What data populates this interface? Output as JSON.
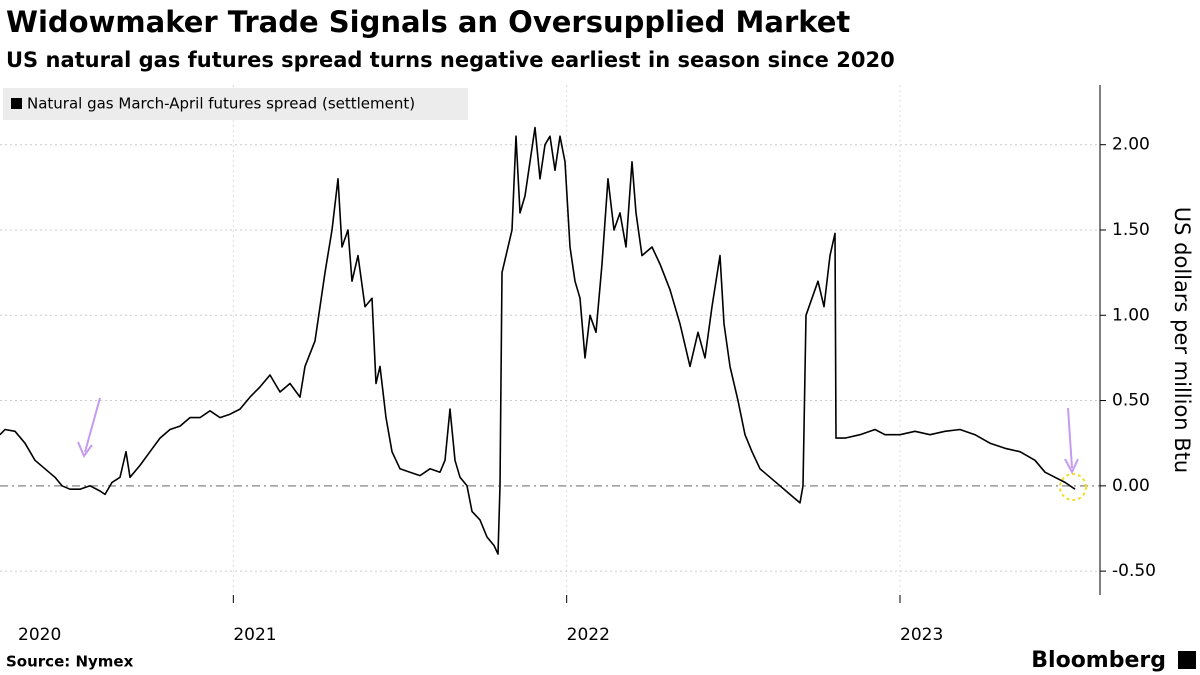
{
  "chart_data": {
    "type": "line",
    "title": "Widowmaker Trade Signals an Oversupplied Market",
    "subtitle": "US natural gas futures spread turns negative earliest in season since 2020",
    "y_label": "US dollars per million Btu",
    "source": "Source: Nymex",
    "brand": "Bloomberg",
    "x": [
      2020.3,
      2020.315,
      2020.345,
      2020.375,
      2020.405,
      2020.435,
      2020.465,
      2020.486,
      2020.51,
      2020.54,
      2020.57,
      2020.6,
      2020.615,
      2020.636,
      2020.66,
      2020.678,
      2020.69,
      2020.72,
      2020.75,
      2020.78,
      2020.81,
      2020.84,
      2020.87,
      2020.9,
      2020.93,
      2020.96,
      2020.99,
      2021.02,
      2021.05,
      2021.08,
      2021.11,
      2021.14,
      2021.17,
      2021.2,
      2021.215,
      2021.245,
      2021.26,
      2021.275,
      2021.296,
      2021.314,
      2021.326,
      2021.344,
      2021.356,
      2021.374,
      2021.395,
      2021.416,
      2021.428,
      2021.44,
      2021.458,
      2021.476,
      2021.5,
      2021.53,
      2021.56,
      2021.59,
      2021.62,
      2021.635,
      2021.65,
      2021.665,
      2021.68,
      2021.701,
      2021.716,
      2021.74,
      2021.761,
      2021.782,
      2021.794,
      2021.8,
      2021.806,
      2021.818,
      2021.836,
      2021.848,
      2021.86,
      2021.875,
      2021.89,
      2021.905,
      2021.92,
      2021.935,
      2021.95,
      2021.965,
      2021.98,
      2021.995,
      2022.01,
      2022.025,
      2022.04,
      2022.055,
      2022.07,
      2022.088,
      2022.106,
      2022.124,
      2022.142,
      2022.16,
      2022.178,
      2022.196,
      2022.208,
      2022.226,
      2022.256,
      2022.28,
      2022.31,
      2022.34,
      2022.37,
      2022.394,
      2022.415,
      2022.436,
      2022.46,
      2022.472,
      2022.49,
      2022.514,
      2022.535,
      2022.556,
      2022.58,
      2022.61,
      2022.64,
      2022.67,
      2022.7,
      2022.709,
      2022.718,
      2022.736,
      2022.754,
      2022.772,
      2022.79,
      2022.805,
      2022.808,
      2022.835,
      2022.88,
      2022.925,
      2022.955,
      2023.0,
      2023.045,
      2023.09,
      2023.135,
      2023.18,
      2023.225,
      2023.27,
      2023.315,
      2023.36,
      2023.405,
      2023.435,
      2023.465,
      2023.495,
      2023.525
    ],
    "series": [
      {
        "name": "Natural gas March-April futures spread (settlement)",
        "color": "#000000",
        "values": [
          0.3,
          0.33,
          0.32,
          0.25,
          0.15,
          0.1,
          0.05,
          0.0,
          -0.02,
          -0.02,
          0.0,
          -0.03,
          -0.05,
          0.02,
          0.05,
          0.2,
          0.05,
          0.12,
          0.2,
          0.28,
          0.33,
          0.35,
          0.4,
          0.4,
          0.44,
          0.4,
          0.42,
          0.45,
          0.52,
          0.58,
          0.65,
          0.55,
          0.6,
          0.52,
          0.7,
          0.85,
          1.05,
          1.25,
          1.5,
          1.8,
          1.4,
          1.5,
          1.2,
          1.35,
          1.05,
          1.1,
          0.6,
          0.7,
          0.4,
          0.2,
          0.1,
          0.08,
          0.06,
          0.1,
          0.08,
          0.15,
          0.45,
          0.15,
          0.05,
          0.0,
          -0.15,
          -0.2,
          -0.3,
          -0.35,
          -0.4,
          0.0,
          1.25,
          1.35,
          1.5,
          2.05,
          1.6,
          1.7,
          1.9,
          2.1,
          1.8,
          2.0,
          2.05,
          1.85,
          2.05,
          1.9,
          1.4,
          1.2,
          1.1,
          0.75,
          1.0,
          0.9,
          1.3,
          1.8,
          1.5,
          1.6,
          1.4,
          1.9,
          1.6,
          1.35,
          1.4,
          1.3,
          1.15,
          0.95,
          0.7,
          0.9,
          0.75,
          1.05,
          1.35,
          0.95,
          0.7,
          0.5,
          0.3,
          0.2,
          0.1,
          0.05,
          0.0,
          -0.05,
          -0.1,
          0.0,
          1.0,
          1.1,
          1.2,
          1.05,
          1.35,
          1.48,
          0.28,
          0.28,
          0.3,
          0.33,
          0.3,
          0.3,
          0.32,
          0.3,
          0.32,
          0.33,
          0.3,
          0.25,
          0.22,
          0.2,
          0.15,
          0.08,
          0.05,
          0.02,
          -0.02
        ]
      }
    ],
    "xlim": [
      2020.3,
      2023.6
    ],
    "xticks": [
      2020,
      2021,
      2022,
      2023
    ],
    "ylim": [
      -0.64,
      2.35
    ],
    "yticks": [
      {
        "value": -0.5,
        "label": "-0.50"
      },
      {
        "value": 0,
        "label": "0.00"
      },
      {
        "value": 0.5,
        "label": "0.50"
      },
      {
        "value": 1,
        "label": "1.00"
      },
      {
        "value": 1.5,
        "label": "1.50"
      },
      {
        "value": 2,
        "label": "2.00"
      }
    ],
    "grid": true
  }
}
